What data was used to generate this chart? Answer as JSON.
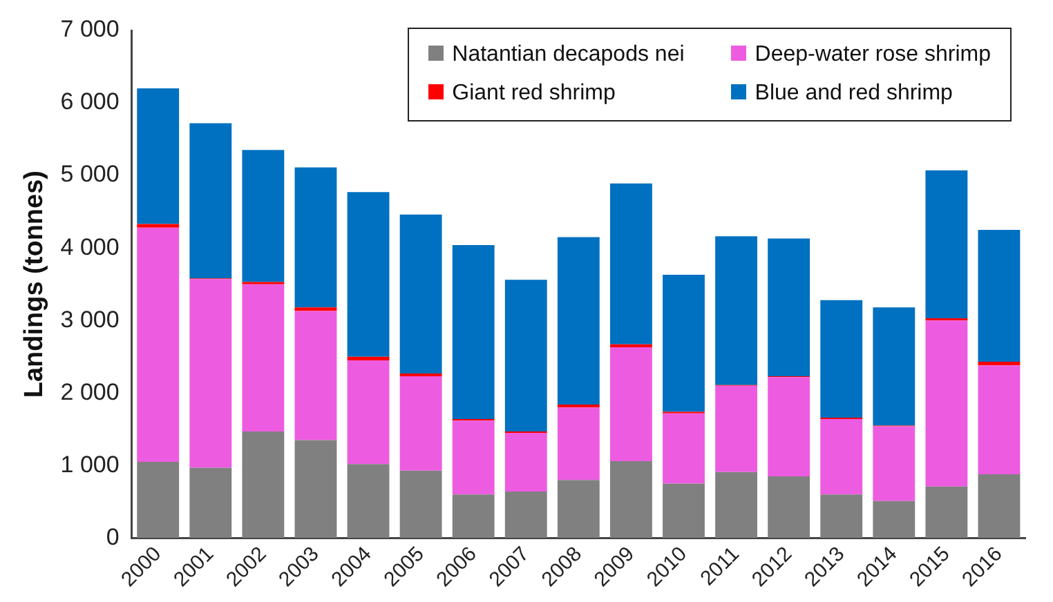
{
  "chart_data": {
    "type": "bar",
    "stacked": true,
    "ylabel": "Landings (tonnes)",
    "categories": [
      "2000",
      "2001",
      "2002",
      "2003",
      "2004",
      "2005",
      "2006",
      "2007",
      "2008",
      "2009",
      "2010",
      "2011",
      "2012",
      "2013",
      "2014",
      "2015",
      "2016"
    ],
    "series": [
      {
        "name": "Natantian decapods nei",
        "color": "#808080",
        "values": [
          1050,
          970,
          1470,
          1350,
          1020,
          930,
          600,
          640,
          800,
          1060,
          750,
          910,
          850,
          600,
          510,
          710,
          880
        ]
      },
      {
        "name": "Deep-water rose shrimp",
        "color": "#ed5ce0",
        "values": [
          3230,
          2600,
          2030,
          1780,
          1430,
          1300,
          1020,
          810,
          1000,
          1570,
          970,
          1190,
          1370,
          1040,
          1030,
          2290,
          1500
        ]
      },
      {
        "name": "Giant red shrimp",
        "color": "#ff0000",
        "values": [
          50,
          10,
          30,
          50,
          50,
          40,
          20,
          20,
          40,
          40,
          20,
          10,
          10,
          20,
          10,
          30,
          50
        ]
      },
      {
        "name": "Blue and red shrimp",
        "color": "#0070c0",
        "values": [
          1870,
          2140,
          1820,
          1930,
          2270,
          2190,
          2400,
          2090,
          2310,
          2220,
          1890,
          2050,
          1900,
          1620,
          1630,
          2040,
          1820
        ]
      }
    ],
    "ylim": [
      0,
      7000
    ],
    "yticks": [
      0,
      {
        "value": 1000,
        "label": "1 000"
      },
      {
        "value": 2000,
        "label": "2 000"
      },
      {
        "value": 3000,
        "label": "3 000"
      },
      {
        "value": 4000,
        "label": "4 000"
      },
      {
        "value": 5000,
        "label": "5 000"
      },
      {
        "value": 6000,
        "label": "6 000"
      },
      {
        "value": 7000,
        "label": "7 000"
      }
    ],
    "grid": false,
    "legend": "top right"
  }
}
